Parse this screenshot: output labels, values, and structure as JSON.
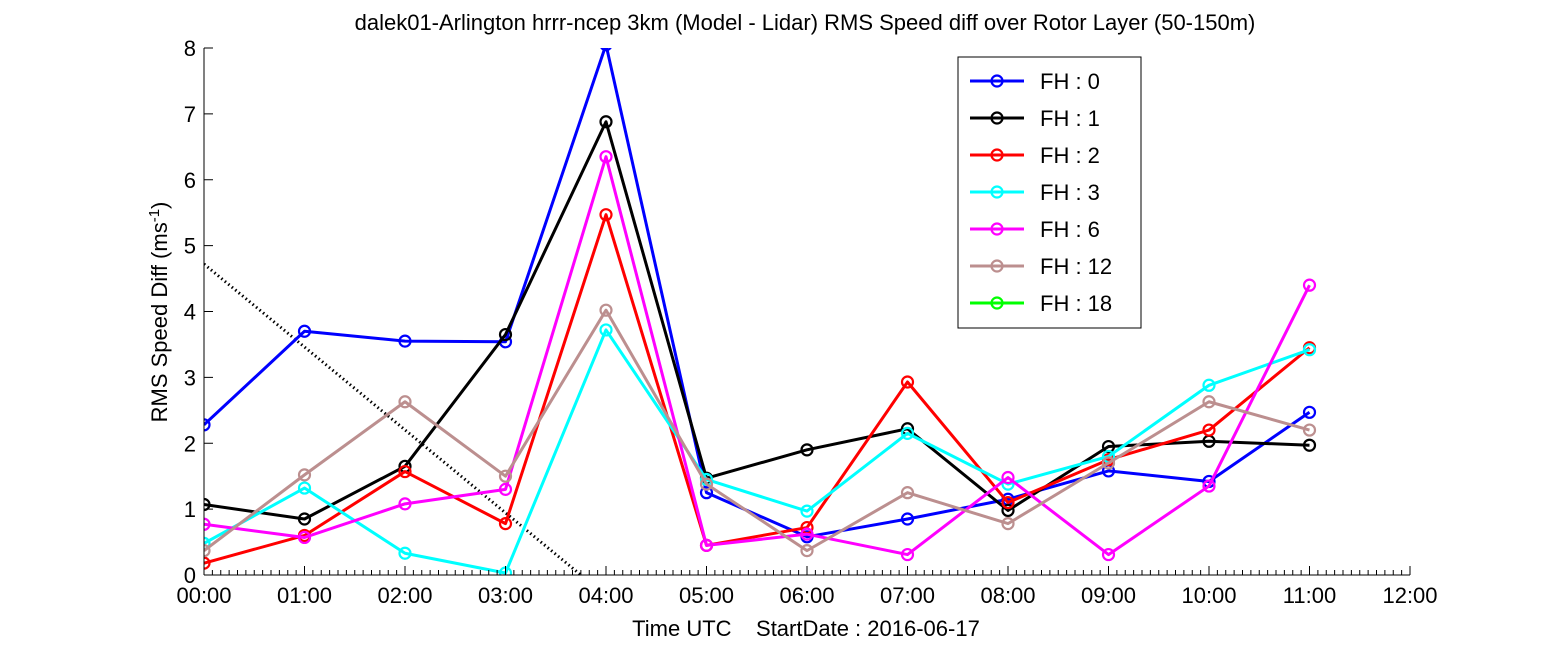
{
  "chart_data": {
    "type": "line",
    "title": "dalek01-Arlington hrrr-ncep 3km (Model - Lidar) RMS Speed diff over Rotor Layer (50-150m)",
    "xlabel": "Time UTC    StartDate : 2016-06-17",
    "ylabel_main": "RMS Speed Diff (ms",
    "ylabel_sup": "-1",
    "ylabel_end": ")",
    "x_ticks": [
      "00:00",
      "01:00",
      "02:00",
      "03:00",
      "04:00",
      "05:00",
      "06:00",
      "07:00",
      "08:00",
      "09:00",
      "10:00",
      "11:00",
      "12:00"
    ],
    "y_ticks": [
      "0",
      "1",
      "2",
      "3",
      "4",
      "5",
      "6",
      "7",
      "8"
    ],
    "xlim": [
      0,
      12
    ],
    "ylim": [
      0,
      8
    ],
    "legend_position": "top-right",
    "series": [
      {
        "name": "FH : 0",
        "color": "#0000ff",
        "values": [
          2.28,
          3.7,
          3.55,
          3.54,
          8.05,
          1.25,
          0.58,
          0.85,
          1.15,
          1.58,
          1.42,
          2.47
        ]
      },
      {
        "name": "FH : 1",
        "color": "#000000",
        "values": [
          1.07,
          0.85,
          1.65,
          3.65,
          6.88,
          1.47,
          1.9,
          2.22,
          0.98,
          1.95,
          2.03,
          1.97
        ]
      },
      {
        "name": "FH : 2",
        "color": "#ff0000",
        "values": [
          0.18,
          0.6,
          1.57,
          0.78,
          5.47,
          0.45,
          0.72,
          2.93,
          1.1,
          1.75,
          2.2,
          3.45
        ]
      },
      {
        "name": "FH : 3",
        "color": "#00ffff",
        "values": [
          0.48,
          1.32,
          0.33,
          0.03,
          3.72,
          1.45,
          0.97,
          2.15,
          1.38,
          1.8,
          2.88,
          3.42
        ]
      },
      {
        "name": "FH : 6",
        "color": "#ff00ff",
        "values": [
          0.77,
          0.57,
          1.08,
          1.3,
          6.35,
          0.45,
          0.62,
          0.31,
          1.48,
          0.31,
          1.35,
          4.4
        ]
      },
      {
        "name": "FH : 12",
        "color": "#bc8f8f",
        "values": [
          0.37,
          1.52,
          2.63,
          1.5,
          4.02,
          1.38,
          0.37,
          1.25,
          0.78,
          1.7,
          2.63,
          2.2
        ]
      },
      {
        "name": "FH : 18",
        "color": "#00ff00",
        "values": []
      }
    ],
    "trend_line": {
      "style": "dotted",
      "color": "#000000",
      "x": [
        0,
        3.75
      ],
      "y": [
        4.72,
        0
      ]
    }
  }
}
